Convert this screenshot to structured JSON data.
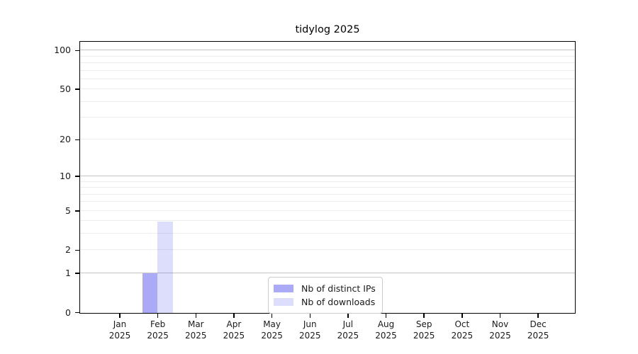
{
  "chart_data": {
    "type": "bar",
    "title": "tidylog 2025",
    "year_label": "2025",
    "categories": [
      "Jan",
      "Feb",
      "Mar",
      "Apr",
      "May",
      "Jun",
      "Jul",
      "Aug",
      "Sep",
      "Oct",
      "Nov",
      "Dec"
    ],
    "series": [
      {
        "name": "Nb of distinct IPs",
        "color": "rgba(85,85,238,0.5)",
        "color_hex": "#aaaaf6",
        "values": [
          0,
          1,
          0,
          0,
          0,
          0,
          0,
          0,
          0,
          0,
          0,
          0
        ]
      },
      {
        "name": "Nb of downloads",
        "color": "rgba(85,85,238,0.2)",
        "color_hex": "#dcdcf9",
        "values": [
          0,
          4,
          0,
          0,
          0,
          0,
          0,
          0,
          0,
          0,
          0,
          0
        ]
      }
    ],
    "y_scale": "log1p",
    "ylim": [
      0,
      116
    ],
    "y_ticks": [
      0,
      1,
      2,
      5,
      10,
      20,
      50,
      100
    ],
    "grid": {
      "major_at": [
        1,
        10,
        100
      ],
      "minor_at": [
        2,
        3,
        4,
        5,
        6,
        7,
        8,
        9,
        20,
        30,
        40,
        50,
        60,
        70,
        80,
        90
      ],
      "major_color": "#c4c4c4",
      "minor_color": "#ededed"
    },
    "legend_position": "lower-center",
    "text_color": "#1a1a1a",
    "spine_color": "#000000"
  }
}
